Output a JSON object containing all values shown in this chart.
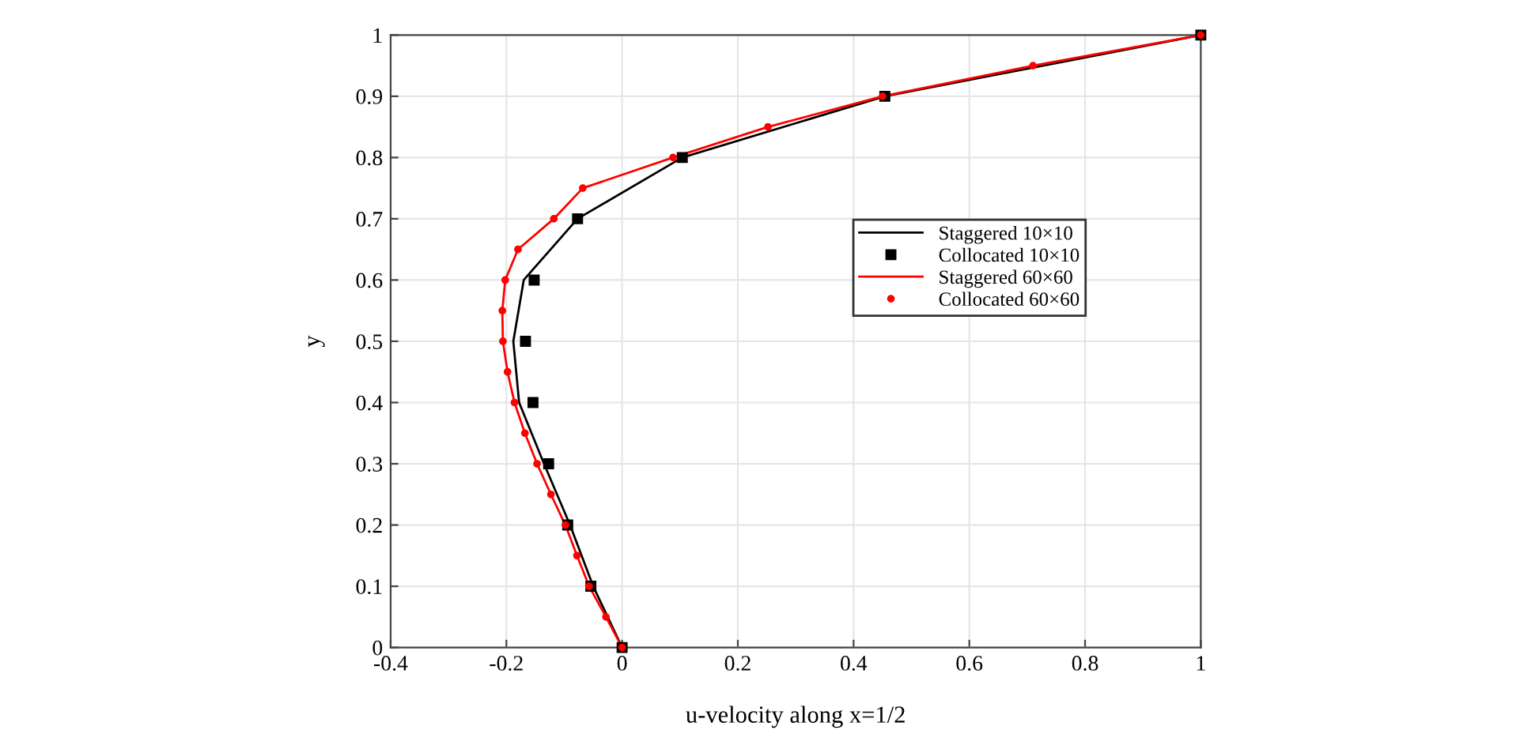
{
  "chart_data": {
    "type": "line",
    "xlabel": "u-velocity along x=1/2",
    "ylabel": "y",
    "xlim": [
      -0.4,
      1
    ],
    "xticks": [
      -0.4,
      -0.2,
      0,
      0.2,
      0.4,
      0.6,
      0.8,
      1
    ],
    "ylim": [
      0,
      1
    ],
    "yticks": [
      0,
      0.1,
      0.2,
      0.3,
      0.4,
      0.5,
      0.6,
      0.7,
      0.8,
      0.9,
      1
    ],
    "grid": true,
    "legend": "right",
    "series": [
      {
        "name": "Staggered 10×10",
        "color": "#000000",
        "x": [
          0,
          -0.05,
          -0.09,
          -0.135,
          -0.178,
          -0.188,
          -0.17,
          -0.077,
          0.104,
          0.454,
          1
        ],
        "values": [
          0,
          0.1,
          0.2,
          0.3,
          0.4,
          0.5,
          0.6,
          0.7,
          0.8,
          0.9,
          1
        ]
      },
      {
        "name": "Collocated 10×10",
        "type": "scatter",
        "marker": "square",
        "color": "#000000",
        "x": [
          0,
          -0.054,
          -0.094,
          -0.127,
          -0.154,
          -0.167,
          -0.152,
          -0.077,
          0.104,
          0.454,
          1
        ],
        "values": [
          0,
          0.1,
          0.2,
          0.3,
          0.4,
          0.5,
          0.6,
          0.7,
          0.8,
          0.9,
          1
        ]
      },
      {
        "name": "Staggered 60×60",
        "color": "#ff0000",
        "x": [
          0,
          -0.028,
          -0.057,
          -0.078,
          -0.098,
          -0.123,
          -0.147,
          -0.168,
          -0.186,
          -0.198,
          -0.206,
          -0.207,
          -0.202,
          -0.18,
          -0.118,
          -0.068,
          0.088,
          0.252,
          0.45,
          0.71,
          1
        ],
        "values": [
          0,
          0.05,
          0.1,
          0.15,
          0.2,
          0.25,
          0.3,
          0.35,
          0.4,
          0.45,
          0.5,
          0.55,
          0.6,
          0.65,
          0.7,
          0.75,
          0.8,
          0.85,
          0.9,
          0.95,
          1
        ]
      },
      {
        "name": "Collocated 60×60",
        "type": "scatter",
        "marker": "circle",
        "color": "#ff0000",
        "x": [
          0,
          -0.028,
          -0.057,
          -0.078,
          -0.098,
          -0.123,
          -0.147,
          -0.168,
          -0.186,
          -0.198,
          -0.206,
          -0.207,
          -0.202,
          -0.18,
          -0.118,
          -0.068,
          0.088,
          0.252,
          0.45,
          0.71,
          1
        ],
        "values": [
          0,
          0.05,
          0.1,
          0.15,
          0.2,
          0.25,
          0.3,
          0.35,
          0.4,
          0.45,
          0.5,
          0.55,
          0.6,
          0.65,
          0.7,
          0.75,
          0.8,
          0.85,
          0.9,
          0.95,
          1
        ]
      }
    ]
  }
}
